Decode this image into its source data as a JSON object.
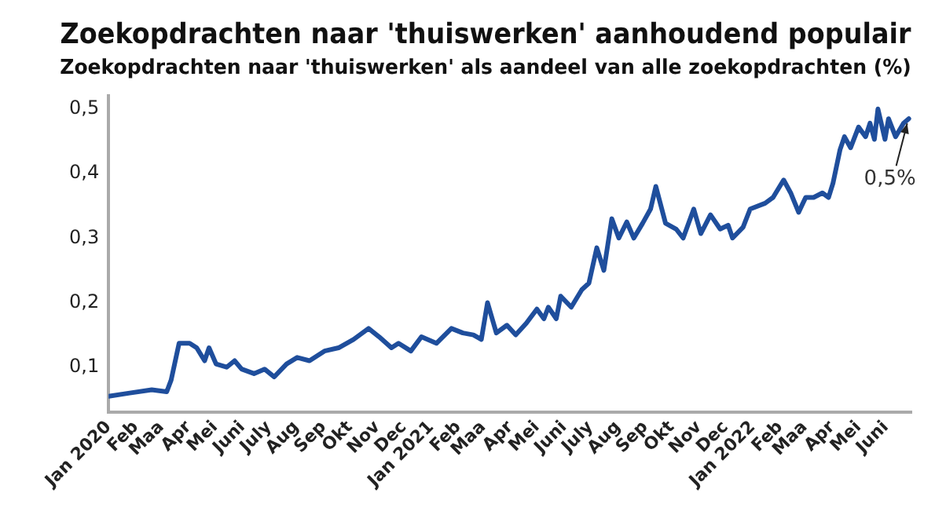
{
  "chart_data": {
    "type": "line",
    "title": "Zoekopdrachten naar 'thuiswerken' aanhoudend populair",
    "subtitle": "Zoekopdrachten naar 'thuiswerken' als aandeel van alle zoekopdrachten (%)",
    "x": [
      "2020-01-01",
      "2020-01-25",
      "2020-02-19",
      "2020-03-07",
      "2020-03-12",
      "2020-03-21",
      "2020-04-02",
      "2020-04-10",
      "2020-04-19",
      "2020-04-24",
      "2020-05-02",
      "2020-05-14",
      "2020-05-23",
      "2020-05-31",
      "2020-06-14",
      "2020-06-26",
      "2020-07-07",
      "2020-07-21",
      "2020-08-02",
      "2020-08-16",
      "2020-09-02",
      "2020-09-18",
      "2020-10-05",
      "2020-10-22",
      "2020-11-03",
      "2020-11-17",
      "2020-11-25",
      "2020-12-09",
      "2020-12-21",
      "2021-01-07",
      "2021-01-24",
      "2021-02-06",
      "2021-02-18",
      "2021-02-27",
      "2021-03-06",
      "2021-03-16",
      "2021-03-28",
      "2021-04-07",
      "2021-04-19",
      "2021-05-01",
      "2021-05-09",
      "2021-05-14",
      "2021-05-23",
      "2021-05-28",
      "2021-06-09",
      "2021-06-21",
      "2021-06-29",
      "2021-07-08",
      "2021-07-16",
      "2021-07-25",
      "2021-08-02",
      "2021-08-11",
      "2021-08-19",
      "2021-08-29",
      "2021-09-07",
      "2021-09-13",
      "2021-09-24",
      "2021-10-06",
      "2021-10-14",
      "2021-10-26",
      "2021-11-03",
      "2021-11-14",
      "2021-11-25",
      "2021-12-04",
      "2021-12-09",
      "2021-12-21",
      "2021-12-29",
      "2022-01-15",
      "2022-01-24",
      "2022-02-05",
      "2022-02-13",
      "2022-02-22",
      "2022-03-02",
      "2022-03-11",
      "2022-03-21",
      "2022-03-28",
      "2022-04-02",
      "2022-04-10",
      "2022-04-15",
      "2022-04-22",
      "2022-05-01",
      "2022-05-09",
      "2022-05-14",
      "2022-05-19",
      "2022-05-23",
      "2022-05-31",
      "2022-06-04",
      "2022-06-12",
      "2022-06-21",
      "2022-06-27"
    ],
    "series": [
      {
        "color": "#1f4e9c",
        "values": [
          0.055,
          0.06,
          0.065,
          0.062,
          0.08,
          0.137,
          0.137,
          0.13,
          0.11,
          0.13,
          0.105,
          0.1,
          0.11,
          0.097,
          0.09,
          0.097,
          0.085,
          0.105,
          0.115,
          0.11,
          0.125,
          0.13,
          0.143,
          0.16,
          0.147,
          0.13,
          0.137,
          0.125,
          0.147,
          0.137,
          0.16,
          0.153,
          0.15,
          0.143,
          0.2,
          0.153,
          0.165,
          0.15,
          0.168,
          0.19,
          0.175,
          0.193,
          0.175,
          0.21,
          0.193,
          0.22,
          0.23,
          0.285,
          0.25,
          0.33,
          0.3,
          0.325,
          0.3,
          0.323,
          0.345,
          0.38,
          0.323,
          0.314,
          0.3,
          0.345,
          0.307,
          0.336,
          0.314,
          0.32,
          0.3,
          0.317,
          0.345,
          0.354,
          0.363,
          0.39,
          0.37,
          0.34,
          0.363,
          0.363,
          0.37,
          0.363,
          0.385,
          0.437,
          0.457,
          0.44,
          0.472,
          0.457,
          0.478,
          0.453,
          0.5,
          0.453,
          0.485,
          0.457,
          0.478,
          0.485
        ]
      }
    ],
    "xlim": [
      "2020-01-01",
      "2022-06-30"
    ],
    "xticks": [
      {
        "value": "2020-01-01",
        "label": "Jan 2020"
      },
      {
        "value": "2020-02-01",
        "label": "Feb"
      },
      {
        "value": "2020-03-01",
        "label": "Maa"
      },
      {
        "value": "2020-04-01",
        "label": "Apr"
      },
      {
        "value": "2020-05-01",
        "label": "Mei"
      },
      {
        "value": "2020-06-01",
        "label": "Juni"
      },
      {
        "value": "2020-07-01",
        "label": "July"
      },
      {
        "value": "2020-08-01",
        "label": "Aug"
      },
      {
        "value": "2020-09-01",
        "label": "Sep"
      },
      {
        "value": "2020-10-01",
        "label": "Okt"
      },
      {
        "value": "2020-11-01",
        "label": "Nov"
      },
      {
        "value": "2020-12-01",
        "label": "Dec"
      },
      {
        "value": "2021-01-01",
        "label": "Jan 2021"
      },
      {
        "value": "2021-02-01",
        "label": "Feb"
      },
      {
        "value": "2021-03-01",
        "label": "Maa"
      },
      {
        "value": "2021-04-01",
        "label": "Apr"
      },
      {
        "value": "2021-05-01",
        "label": "Mei"
      },
      {
        "value": "2021-06-01",
        "label": "Juni"
      },
      {
        "value": "2021-07-01",
        "label": "July"
      },
      {
        "value": "2021-08-01",
        "label": "Aug"
      },
      {
        "value": "2021-09-01",
        "label": "Sep"
      },
      {
        "value": "2021-10-01",
        "label": "Okt"
      },
      {
        "value": "2021-11-01",
        "label": "Nov"
      },
      {
        "value": "2021-12-01",
        "label": "Dec"
      },
      {
        "value": "2022-01-01",
        "label": "Jan 2022"
      },
      {
        "value": "2022-02-01",
        "label": "Feb"
      },
      {
        "value": "2022-03-01",
        "label": "Maa"
      },
      {
        "value": "2022-04-01",
        "label": "Apr"
      },
      {
        "value": "2022-05-01",
        "label": "Mei"
      },
      {
        "value": "2022-06-01",
        "label": "Juni"
      }
    ],
    "ylim": [
      0.03,
      0.52
    ],
    "yticks": [
      {
        "value": 0.1,
        "label": "0,1"
      },
      {
        "value": 0.2,
        "label": "0,2"
      },
      {
        "value": 0.3,
        "label": "0,3"
      },
      {
        "value": 0.4,
        "label": "0,4"
      },
      {
        "value": 0.5,
        "label": "0,5"
      }
    ],
    "annotations": [
      {
        "text": "0,5%",
        "x": "2022-06-27",
        "y": 0.485
      }
    ],
    "grid": false,
    "legend": false,
    "marker": "none",
    "line_style": "solid"
  }
}
